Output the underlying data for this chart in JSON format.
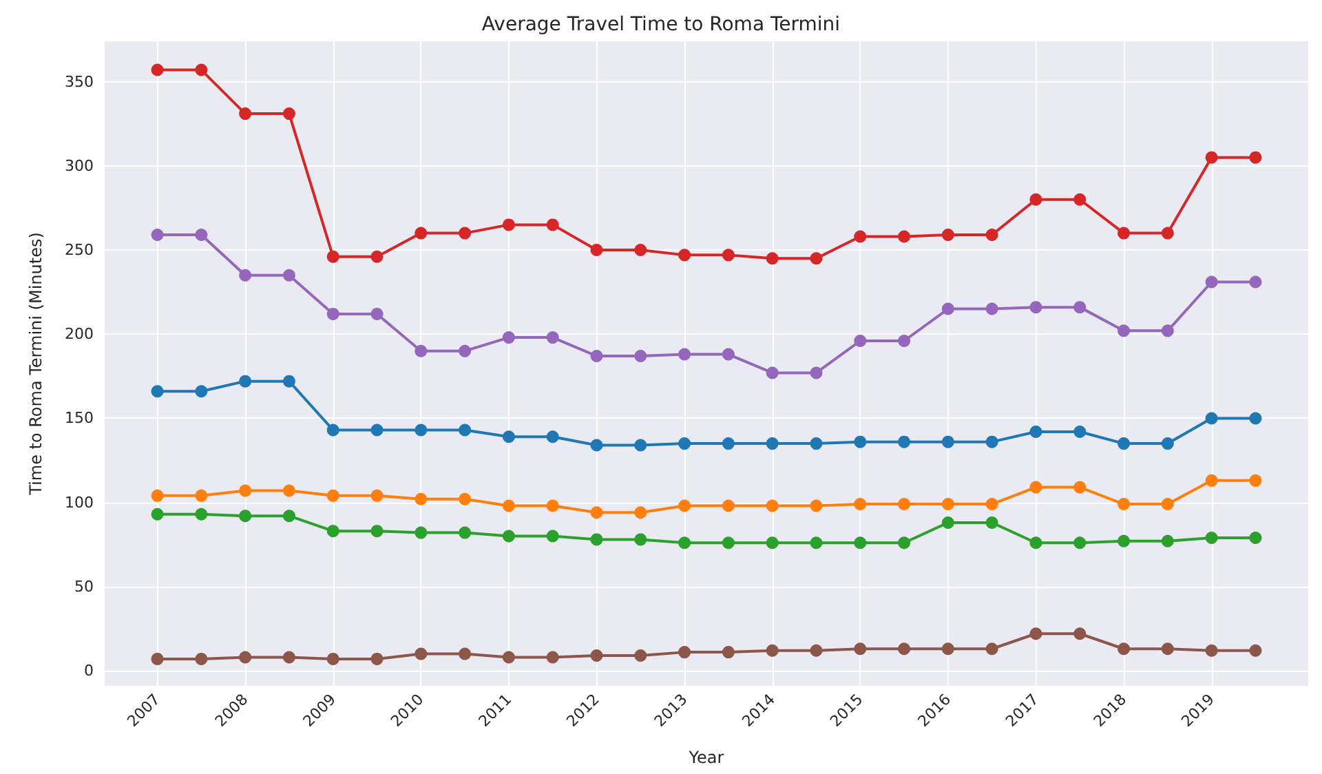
{
  "chart_data": {
    "type": "line",
    "title": "Average Travel Time to Roma Termini",
    "xlabel": "Year",
    "ylabel": "Time to Roma Termini (Minutes)",
    "x": [
      2007,
      2007.5,
      2008,
      2008.5,
      2009,
      2009.5,
      2010,
      2010.5,
      2011,
      2011.5,
      2012,
      2012.5,
      2013,
      2013.5,
      2014,
      2014.5,
      2015,
      2015.5,
      2016,
      2016.5,
      2017,
      2017.5,
      2018,
      2018.5,
      2019,
      2019.5
    ],
    "series": [
      {
        "color": "#1f77b4",
        "values": [
          166,
          166,
          172,
          172,
          143,
          143,
          143,
          143,
          139,
          139,
          134,
          134,
          135,
          135,
          135,
          135,
          136,
          136,
          136,
          136,
          142,
          142,
          135,
          135,
          150,
          150
        ]
      },
      {
        "color": "#ff7f0e",
        "values": [
          104,
          104,
          107,
          107,
          104,
          104,
          102,
          102,
          98,
          98,
          94,
          94,
          98,
          98,
          98,
          98,
          99,
          99,
          99,
          99,
          109,
          109,
          99,
          99,
          113,
          113
        ]
      },
      {
        "color": "#2ca02c",
        "values": [
          93,
          93,
          92,
          92,
          83,
          83,
          82,
          82,
          80,
          80,
          78,
          78,
          76,
          76,
          76,
          76,
          76,
          76,
          88,
          88,
          76,
          76,
          77,
          77,
          79,
          79
        ]
      },
      {
        "color": "#d62728",
        "values": [
          357,
          357,
          331,
          331,
          246,
          246,
          260,
          260,
          265,
          265,
          250,
          250,
          247,
          247,
          245,
          245,
          258,
          258,
          259,
          259,
          280,
          280,
          260,
          260,
          305,
          305
        ]
      },
      {
        "color": "#9467bd",
        "values": [
          259,
          259,
          235,
          235,
          212,
          212,
          190,
          190,
          198,
          198,
          187,
          187,
          188,
          188,
          177,
          177,
          196,
          196,
          215,
          215,
          216,
          216,
          202,
          202,
          231,
          231
        ]
      },
      {
        "color": "#8c564b",
        "values": [
          7,
          7,
          8,
          8,
          7,
          7,
          10,
          10,
          8,
          8,
          9,
          9,
          11,
          11,
          12,
          12,
          13,
          13,
          13,
          13,
          22,
          22,
          13,
          13,
          12,
          12
        ]
      }
    ],
    "xlim": [
      2006.4,
      2020.1
    ],
    "xticks": [
      2007,
      2008,
      2009,
      2010,
      2011,
      2012,
      2013,
      2014,
      2015,
      2016,
      2017,
      2018,
      2019
    ],
    "ylim": [
      -9,
      374
    ],
    "yticks": [
      0,
      50,
      100,
      150,
      200,
      250,
      300,
      350
    ],
    "grid": true,
    "marker": "circle",
    "line_style": "solid"
  }
}
